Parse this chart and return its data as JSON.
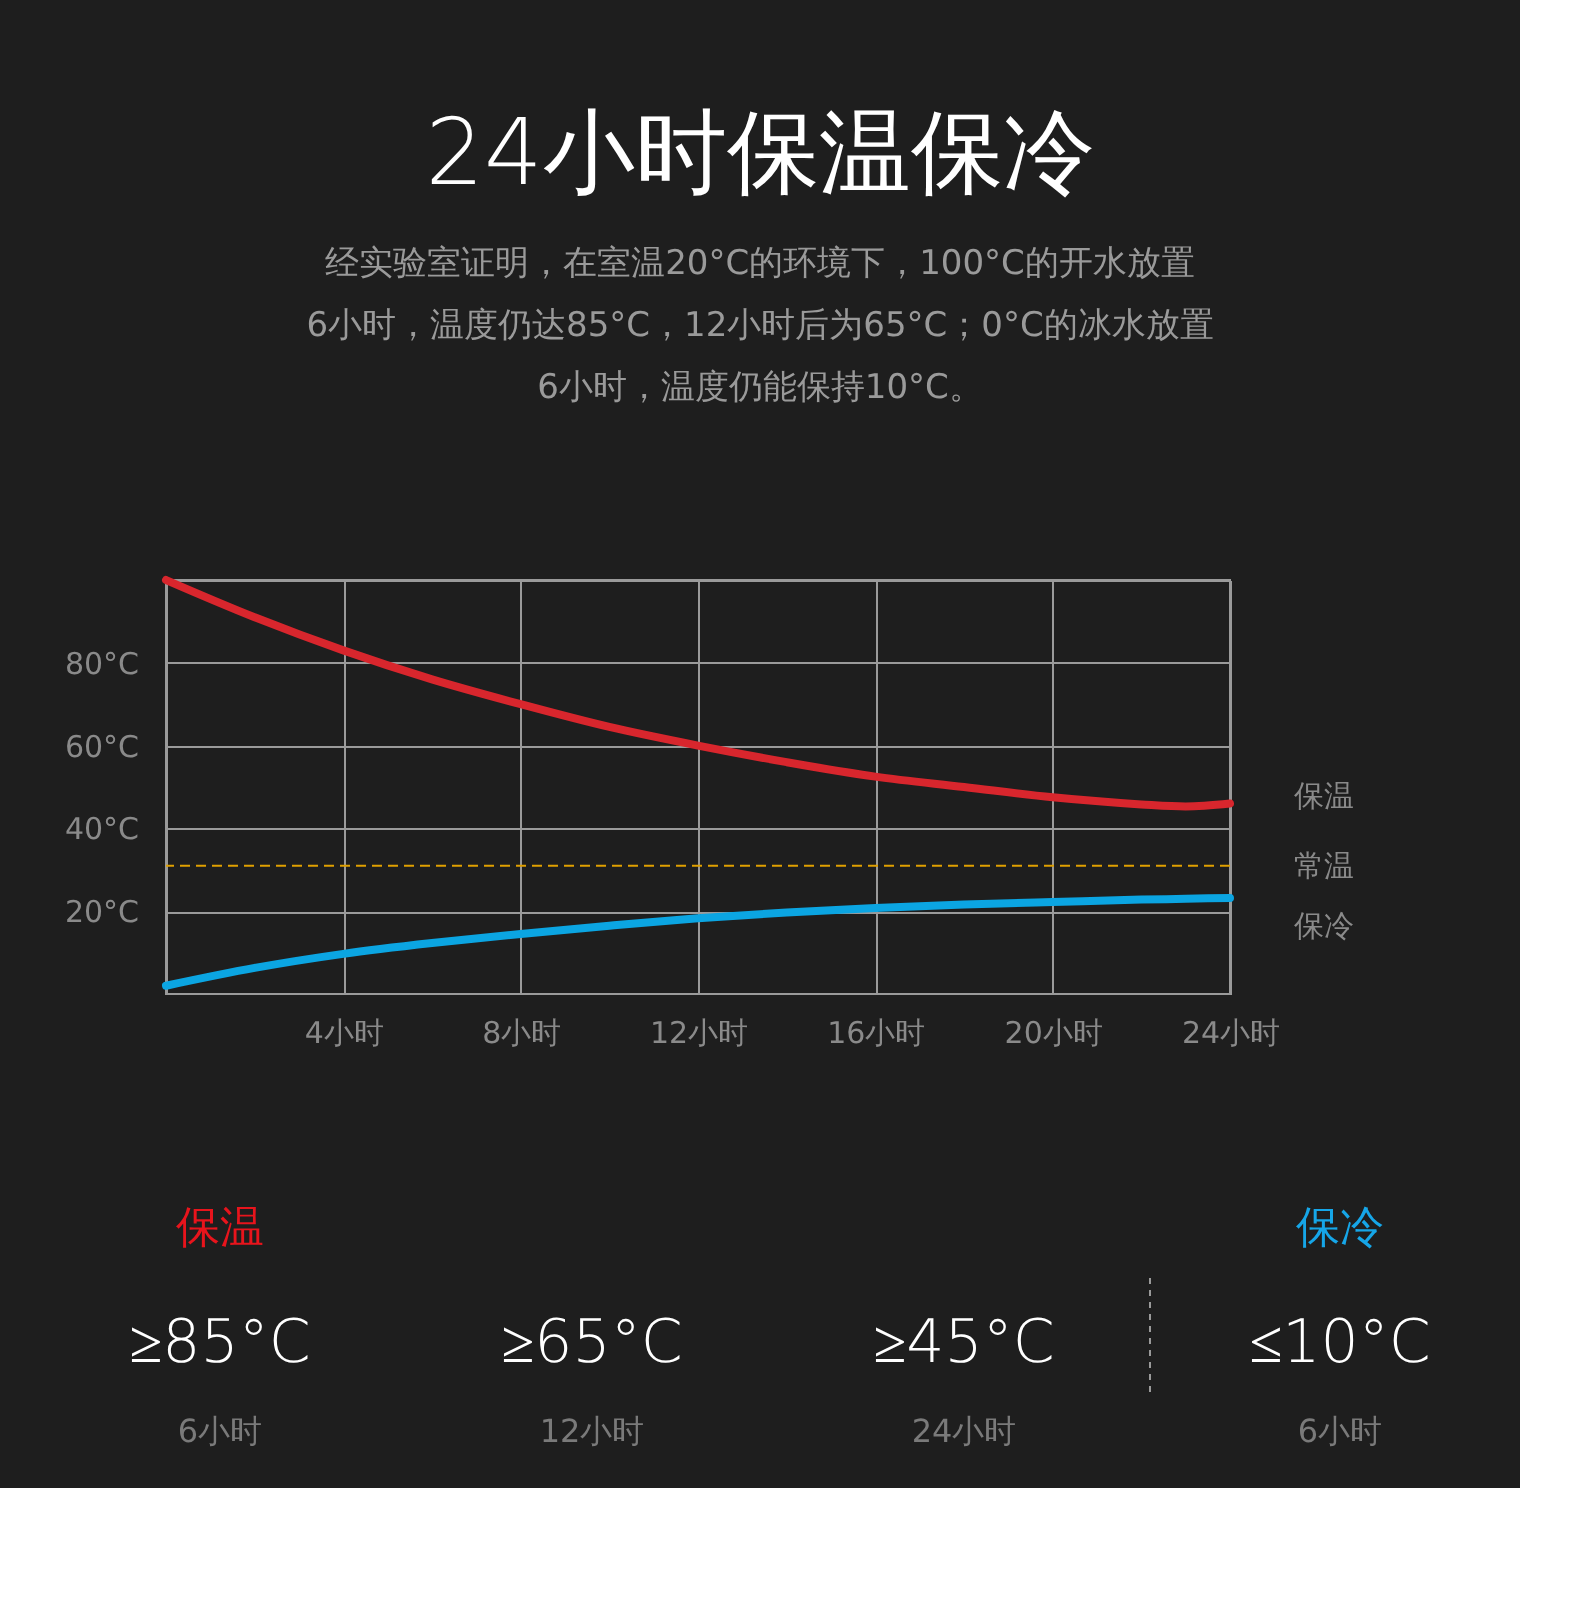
{
  "chart_data": [
    {
      "type": "line",
      "title": "24小时保温保冷",
      "subtitle": [
        "经实验室证明，在室温20°C的环境下，100°C的开水放置",
        "6小时，温度仍达85°C，12小时后为65°C；0°C的冰水放置",
        "6小时，温度仍能保持10°C。"
      ],
      "x": [
        0,
        2,
        4,
        6,
        8,
        10,
        12,
        14,
        16,
        18,
        20,
        22,
        23,
        24
      ],
      "series": [
        {
          "name": "保温",
          "color": "#d8262d",
          "values": [
            100,
            91,
            83,
            76,
            70,
            64.5,
            60,
            56,
            52.5,
            50,
            47.5,
            45.8,
            45.3,
            46
          ]
        },
        {
          "name": "保冷",
          "color": "#0ba5e2",
          "values": [
            2,
            6.3,
            9.7,
            12.3,
            14.5,
            16.5,
            18.3,
            19.7,
            20.8,
            21.6,
            22.2,
            22.8,
            23,
            23.2
          ]
        }
      ],
      "xlim": [
        0,
        24
      ],
      "xticks": [
        {
          "value": 0,
          "label": null
        },
        {
          "value": 4,
          "label": "4小时"
        },
        {
          "value": 8,
          "label": "8小时"
        },
        {
          "value": 12,
          "label": "12小时"
        },
        {
          "value": 16,
          "label": "16小时"
        },
        {
          "value": 20,
          "label": "20小时"
        },
        {
          "value": 24,
          "label": "24小时"
        }
      ],
      "ylim": [
        0,
        100
      ],
      "yticks": [
        {
          "value": 20,
          "label": "20°C"
        },
        {
          "value": 40,
          "label": "40°C"
        },
        {
          "value": 60,
          "label": "60°C"
        },
        {
          "value": 80,
          "label": "80°C"
        },
        {
          "value": 100,
          "label": null
        }
      ],
      "ref_lines": [
        {
          "axis": "y",
          "value": 31,
          "label": "常温",
          "color": "#e0a000",
          "line_style": "dashed"
        }
      ],
      "grid": true,
      "legend": false,
      "marker": "none",
      "line_style": "solid"
    },
    {
      "type": "other",
      "colors": [
        "#e8141c",
        "#16a6e8"
      ],
      "annotations": [
        "保温",
        "≥85°C",
        "6小时",
        "≥65°C",
        "12小时",
        "≥45°C",
        "24小时",
        "保冷",
        "≤10°C",
        "6小时"
      ]
    }
  ]
}
